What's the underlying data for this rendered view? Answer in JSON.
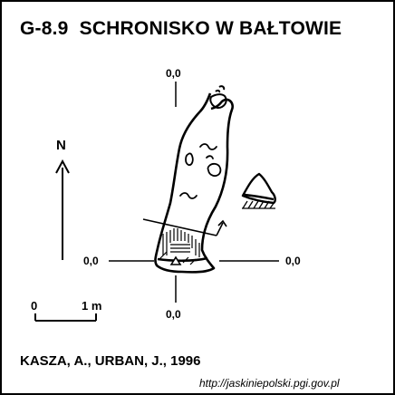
{
  "title": {
    "code": "G-8.9",
    "name": "SCHRONISKO W BAŁTOWIE"
  },
  "elevations": {
    "top": "0,0",
    "left": "0,0",
    "right": "0,0",
    "bottom": "0,0"
  },
  "north_label": "N",
  "scale": {
    "start": "0",
    "end": "1 m"
  },
  "authors": "KASZA, A., URBAN, J., 1996",
  "source_url": "http://jaskiniepolski.pgi.gov.pl",
  "colors": {
    "ink": "#000000",
    "paper": "#ffffff"
  }
}
